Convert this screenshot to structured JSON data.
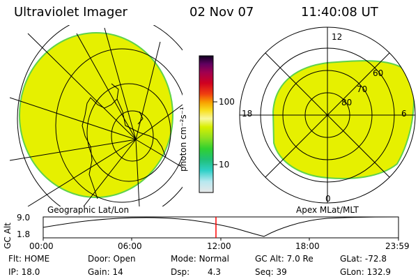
{
  "header": {
    "title": "Ultraviolet Imager",
    "date": "02 Nov 07",
    "time": "11:40:08 UT"
  },
  "colorbar": {
    "unit_label": "photon cm⁻²s⁻¹",
    "ticks": [
      "100",
      "10"
    ]
  },
  "geo_panel": {
    "label": "Geographic Lat/Lon"
  },
  "polar_panel": {
    "label": "Apex MLat/MLT",
    "mlt_labels": [
      "12",
      "18",
      "6",
      "0"
    ],
    "lat_labels": [
      "60",
      "70",
      "80"
    ]
  },
  "altitude_strip": {
    "axis_label": "GC Alt",
    "y_ticks": [
      "9.0",
      "1.8"
    ],
    "x_ticks": [
      "00:00",
      "06:00",
      "12:00",
      "18:00",
      "23:59"
    ],
    "marker_time_hours": 11.67
  },
  "status": {
    "flt": {
      "label": "Flt:",
      "value": "HOME"
    },
    "ip": {
      "label": "IP:",
      "value": "18.0"
    },
    "door": {
      "label": "Door:",
      "value": "Open"
    },
    "gain": {
      "label": "Gain:",
      "value": "14"
    },
    "mode": {
      "label": "Mode:",
      "value": "Normal"
    },
    "dsp": {
      "label": "Dsp:",
      "value": "4.3"
    },
    "gcalt": {
      "label": "GC Alt:",
      "value": "7.0 Re"
    },
    "seq": {
      "label": "Seq:",
      "value": "39"
    },
    "glat": {
      "label": "GLat:",
      "value": "-72.8"
    },
    "glon": {
      "label": "GLon:",
      "value": "132.9"
    }
  },
  "colors": {
    "emission": "#e6f000",
    "emission_edge": "#5fd24a",
    "marker": "#ff0000"
  }
}
